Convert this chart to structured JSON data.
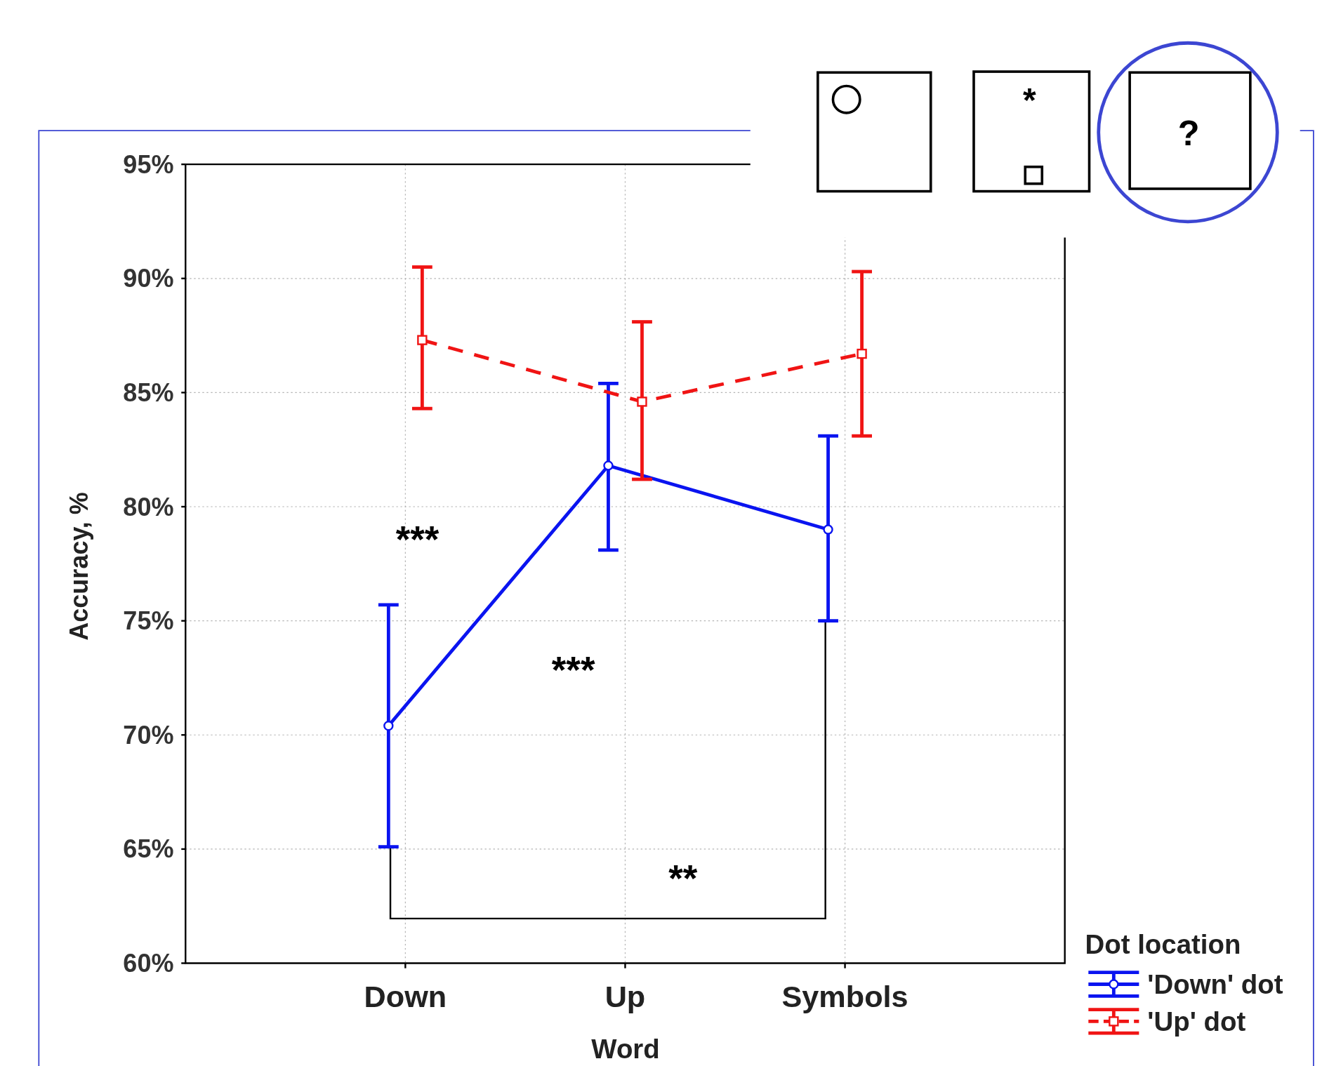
{
  "chart_data": {
    "type": "line",
    "xlabel": "Word",
    "ylabel": "Accuracy, %",
    "legend_title": "Dot location",
    "categories": [
      "Down",
      "Up",
      "Symbols"
    ],
    "ylim": [
      60,
      95
    ],
    "yticks": [
      {
        "value": 60,
        "label": "60%"
      },
      {
        "value": 65,
        "label": "65%"
      },
      {
        "value": 70,
        "label": "70%"
      },
      {
        "value": 75,
        "label": "75%"
      },
      {
        "value": 80,
        "label": "80%"
      },
      {
        "value": 85,
        "label": "85%"
      },
      {
        "value": 90,
        "label": "90%"
      },
      {
        "value": 95,
        "label": "95%"
      }
    ],
    "grid": true,
    "legend": "bottom right",
    "series": [
      {
        "name": "'Down' dot",
        "color": "#0a14f0",
        "marker": "circle",
        "line_style": "solid",
        "values": [
          70.4,
          81.8,
          79.0
        ],
        "errors": [
          [
            65.1,
            75.7
          ],
          [
            78.1,
            85.4
          ],
          [
            75.0,
            83.1
          ]
        ]
      },
      {
        "name": "'Up' dot",
        "color": "#f01414",
        "marker": "square",
        "line_style": "dashed",
        "values": [
          87.3,
          84.6,
          86.7
        ],
        "errors": [
          [
            84.3,
            90.5
          ],
          [
            81.2,
            88.1
          ],
          [
            83.1,
            90.3
          ]
        ]
      }
    ],
    "annotations": [
      "***",
      "***",
      "**",
      "*",
      "?"
    ]
  }
}
